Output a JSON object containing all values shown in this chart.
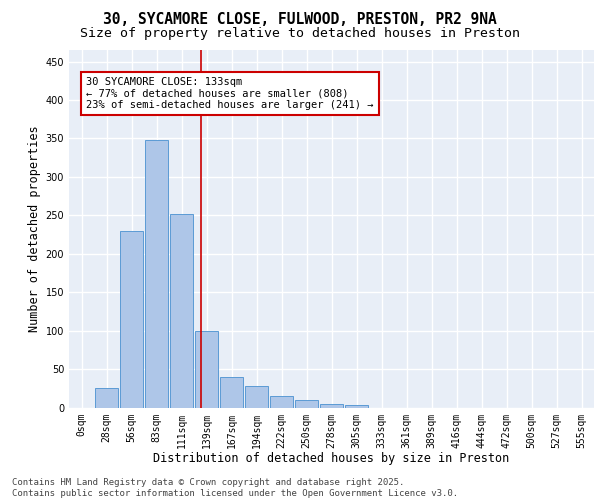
{
  "title_line1": "30, SYCAMORE CLOSE, FULWOOD, PRESTON, PR2 9NA",
  "title_line2": "Size of property relative to detached houses in Preston",
  "xlabel": "Distribution of detached houses by size in Preston",
  "ylabel": "Number of detached properties",
  "categories": [
    "0sqm",
    "28sqm",
    "56sqm",
    "83sqm",
    "111sqm",
    "139sqm",
    "167sqm",
    "194sqm",
    "222sqm",
    "250sqm",
    "278sqm",
    "305sqm",
    "333sqm",
    "361sqm",
    "389sqm",
    "416sqm",
    "444sqm",
    "472sqm",
    "500sqm",
    "527sqm",
    "555sqm"
  ],
  "bar_heights": [
    0,
    25,
    230,
    348,
    252,
    100,
    40,
    28,
    15,
    10,
    5,
    3,
    0,
    0,
    0,
    0,
    0,
    0,
    0,
    0,
    0
  ],
  "bar_color": "#aec6e8",
  "bar_edge_color": "#5b9bd5",
  "vline_x": 4.77,
  "vline_color": "#cc0000",
  "annotation_box_text": "30 SYCAMORE CLOSE: 133sqm\n← 77% of detached houses are smaller (808)\n23% of semi-detached houses are larger (241) →",
  "annotation_box_color": "#cc0000",
  "ylim": [
    0,
    465
  ],
  "yticks": [
    0,
    50,
    100,
    150,
    200,
    250,
    300,
    350,
    400,
    450
  ],
  "background_color": "#e8eef7",
  "grid_color": "#ffffff",
  "footer_text": "Contains HM Land Registry data © Crown copyright and database right 2025.\nContains public sector information licensed under the Open Government Licence v3.0.",
  "title_fontsize": 10.5,
  "subtitle_fontsize": 9.5,
  "label_fontsize": 8.5,
  "tick_fontsize": 7,
  "ann_fontsize": 7.5,
  "footer_fontsize": 6.5
}
